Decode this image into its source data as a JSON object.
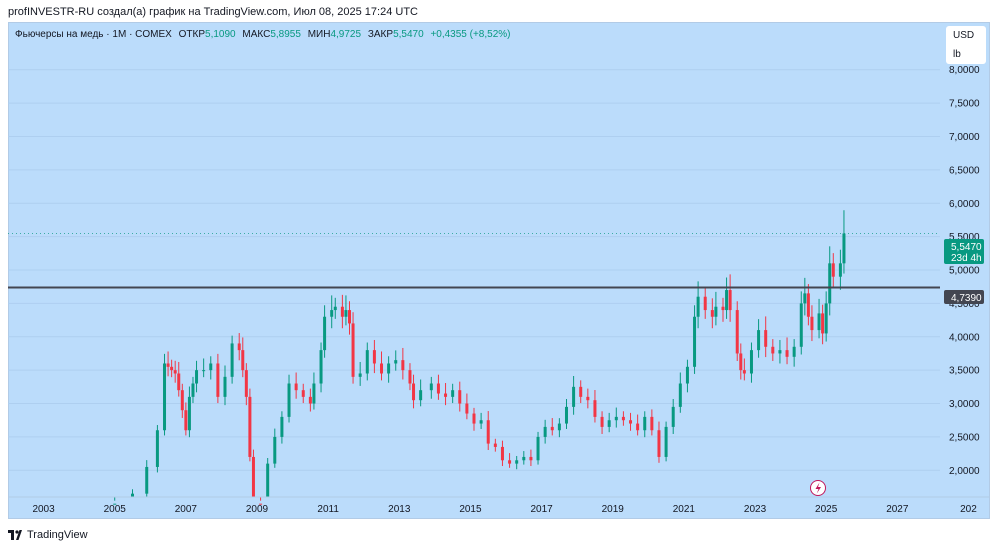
{
  "header": {
    "attribution": "profINVESTR-RU создал(а) график на TradingView.com, Июл 08, 2025 17:24 UTC"
  },
  "legend": {
    "symbol": "Фьючерсы на медь · 1М · COMEX",
    "open_label": "ОТКР",
    "open": "5,1090",
    "high_label": "МАКС",
    "high": "5,8955",
    "low_label": "МИН",
    "low": "4,9725",
    "close_label": "ЗАКР",
    "close": "5,5470",
    "change": "+0,4355 (+8,52%)"
  },
  "currency": {
    "code": "USD",
    "unit": "lb"
  },
  "price_labels": {
    "last": "5,5470",
    "countdown": "23d 4h",
    "level": "4,7390"
  },
  "footer": {
    "brand": "TradingView"
  },
  "colors": {
    "up": "#089981",
    "down": "#f23645",
    "background": "#bbdcfb",
    "level_line": "#434651"
  },
  "chart_data": {
    "type": "candlestick",
    "interval": "1M",
    "y_ticks": [
      "8,0000",
      "7,5000",
      "7,0000",
      "6,5000",
      "6,0000",
      "5,5000",
      "5,0000",
      "4,5000",
      "4,0000",
      "3,5000",
      "3,0000",
      "2,5000",
      "2,0000"
    ],
    "x_ticks": [
      "2003",
      "2005",
      "2007",
      "2009",
      "2011",
      "2013",
      "2015",
      "2017",
      "2019",
      "2021",
      "2023",
      "2025",
      "2027",
      "202"
    ],
    "ylim": [
      1.6,
      8.7
    ],
    "xlim": [
      2002.0,
      2028.2
    ],
    "horizontal_level": 4.739,
    "last_price": 5.547,
    "series_approx_close": [
      [
        2005.0,
        1.5
      ],
      [
        2005.5,
        1.65
      ],
      [
        2005.9,
        2.05
      ],
      [
        2006.2,
        2.6
      ],
      [
        2006.4,
        3.6
      ],
      [
        2006.5,
        3.55
      ],
      [
        2006.6,
        3.5
      ],
      [
        2006.7,
        3.45
      ],
      [
        2006.8,
        3.2
      ],
      [
        2006.9,
        2.9
      ],
      [
        2007.0,
        2.6
      ],
      [
        2007.1,
        3.1
      ],
      [
        2007.2,
        3.3
      ],
      [
        2007.3,
        3.5
      ],
      [
        2007.5,
        3.5
      ],
      [
        2007.7,
        3.6
      ],
      [
        2007.9,
        3.1
      ],
      [
        2008.1,
        3.4
      ],
      [
        2008.3,
        3.9
      ],
      [
        2008.5,
        3.8
      ],
      [
        2008.6,
        3.5
      ],
      [
        2008.7,
        3.1
      ],
      [
        2008.8,
        2.2
      ],
      [
        2008.9,
        1.5
      ],
      [
        2009.1,
        1.45
      ],
      [
        2009.3,
        2.1
      ],
      [
        2009.5,
        2.5
      ],
      [
        2009.7,
        2.8
      ],
      [
        2009.9,
        3.3
      ],
      [
        2010.1,
        3.2
      ],
      [
        2010.3,
        3.1
      ],
      [
        2010.5,
        3.0
      ],
      [
        2010.6,
        3.3
      ],
      [
        2010.8,
        3.8
      ],
      [
        2010.9,
        4.3
      ],
      [
        2011.1,
        4.4
      ],
      [
        2011.2,
        4.45
      ],
      [
        2011.4,
        4.3
      ],
      [
        2011.5,
        4.4
      ],
      [
        2011.6,
        4.2
      ],
      [
        2011.7,
        3.4
      ],
      [
        2011.9,
        3.45
      ],
      [
        2012.1,
        3.8
      ],
      [
        2012.3,
        3.6
      ],
      [
        2012.5,
        3.45
      ],
      [
        2012.7,
        3.6
      ],
      [
        2012.9,
        3.65
      ],
      [
        2013.1,
        3.5
      ],
      [
        2013.3,
        3.3
      ],
      [
        2013.4,
        3.05
      ],
      [
        2013.6,
        3.2
      ],
      [
        2013.9,
        3.3
      ],
      [
        2014.1,
        3.15
      ],
      [
        2014.3,
        3.1
      ],
      [
        2014.5,
        3.2
      ],
      [
        2014.7,
        3.0
      ],
      [
        2014.9,
        2.85
      ],
      [
        2015.1,
        2.7
      ],
      [
        2015.3,
        2.75
      ],
      [
        2015.5,
        2.4
      ],
      [
        2015.7,
        2.35
      ],
      [
        2015.9,
        2.15
      ],
      [
        2016.1,
        2.1
      ],
      [
        2016.3,
        2.15
      ],
      [
        2016.5,
        2.2
      ],
      [
        2016.7,
        2.15
      ],
      [
        2016.9,
        2.5
      ],
      [
        2017.1,
        2.65
      ],
      [
        2017.3,
        2.6
      ],
      [
        2017.5,
        2.7
      ],
      [
        2017.7,
        2.95
      ],
      [
        2017.9,
        3.25
      ],
      [
        2018.1,
        3.1
      ],
      [
        2018.3,
        3.05
      ],
      [
        2018.5,
        2.8
      ],
      [
        2018.7,
        2.65
      ],
      [
        2018.9,
        2.75
      ],
      [
        2019.1,
        2.8
      ],
      [
        2019.3,
        2.75
      ],
      [
        2019.5,
        2.7
      ],
      [
        2019.7,
        2.6
      ],
      [
        2019.9,
        2.8
      ],
      [
        2020.1,
        2.6
      ],
      [
        2020.3,
        2.2
      ],
      [
        2020.5,
        2.65
      ],
      [
        2020.7,
        2.95
      ],
      [
        2020.9,
        3.3
      ],
      [
        2021.1,
        3.55
      ],
      [
        2021.3,
        4.3
      ],
      [
        2021.4,
        4.6
      ],
      [
        2021.6,
        4.4
      ],
      [
        2021.8,
        4.3
      ],
      [
        2021.9,
        4.45
      ],
      [
        2022.1,
        4.4
      ],
      [
        2022.2,
        4.7
      ],
      [
        2022.3,
        4.4
      ],
      [
        2022.5,
        3.75
      ],
      [
        2022.6,
        3.5
      ],
      [
        2022.7,
        3.45
      ],
      [
        2022.9,
        3.8
      ],
      [
        2023.1,
        4.1
      ],
      [
        2023.3,
        3.85
      ],
      [
        2023.5,
        3.75
      ],
      [
        2023.7,
        3.8
      ],
      [
        2023.9,
        3.7
      ],
      [
        2024.1,
        3.85
      ],
      [
        2024.3,
        4.5
      ],
      [
        2024.4,
        4.65
      ],
      [
        2024.5,
        4.3
      ],
      [
        2024.6,
        4.1
      ],
      [
        2024.8,
        4.35
      ],
      [
        2024.9,
        4.05
      ],
      [
        2025.0,
        4.5
      ],
      [
        2025.1,
        5.1
      ],
      [
        2025.2,
        4.9
      ],
      [
        2025.4,
        5.1
      ],
      [
        2025.5,
        5.547
      ]
    ]
  }
}
